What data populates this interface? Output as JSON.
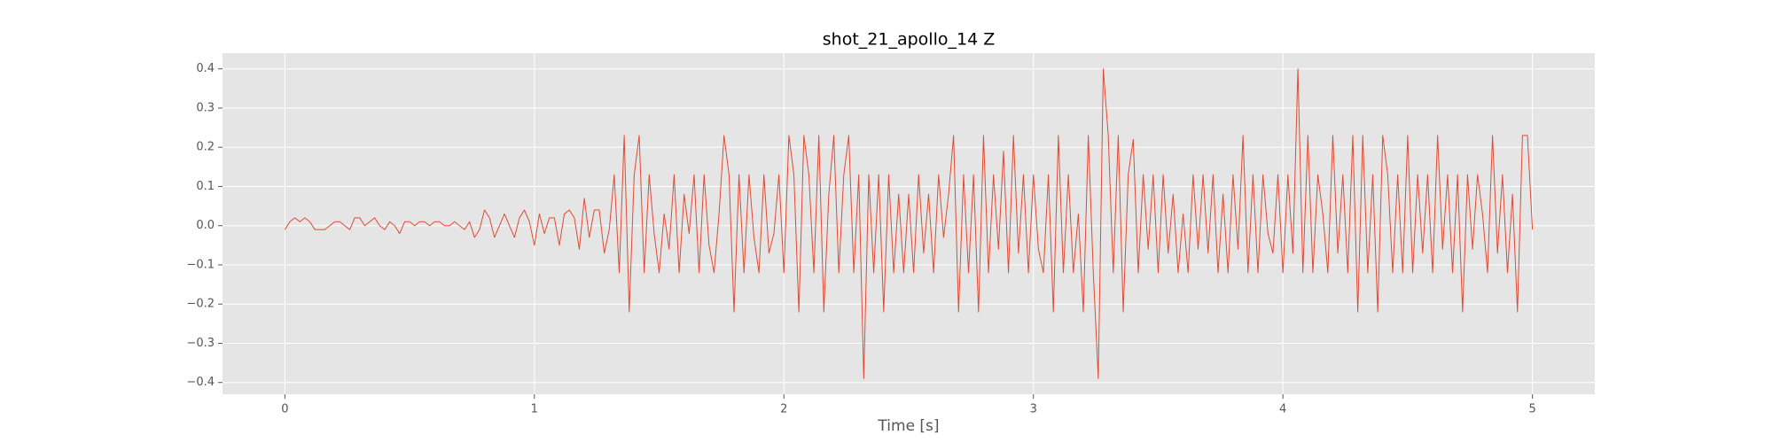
{
  "chart_data": {
    "type": "line",
    "title": "shot_21_apollo_14 Z",
    "x_label": "Time [s]",
    "x": [
      0,
      0.02,
      0.04,
      0.06,
      0.08,
      0.1,
      0.12,
      0.14,
      0.16,
      0.18,
      0.2,
      0.22,
      0.24,
      0.26,
      0.28,
      0.3,
      0.32,
      0.34,
      0.36,
      0.38,
      0.4,
      0.42,
      0.44,
      0.46,
      0.48,
      0.5,
      0.52,
      0.54,
      0.56,
      0.58,
      0.6,
      0.62,
      0.64,
      0.66,
      0.68,
      0.7,
      0.72,
      0.74,
      0.76,
      0.78,
      0.8,
      0.82,
      0.84,
      0.86,
      0.88,
      0.9,
      0.92,
      0.94,
      0.96,
      0.98,
      1,
      1.02,
      1.04,
      1.06,
      1.08,
      1.1,
      1.12,
      1.14,
      1.16,
      1.18,
      1.2,
      1.22,
      1.24,
      1.26,
      1.28,
      1.3,
      1.32,
      1.34,
      1.36,
      1.38,
      1.4,
      1.42,
      1.44,
      1.46,
      1.48,
      1.5,
      1.52,
      1.54,
      1.56,
      1.58,
      1.6,
      1.62,
      1.64,
      1.66,
      1.68,
      1.7,
      1.72,
      1.74,
      1.76,
      1.78,
      1.8,
      1.82,
      1.84,
      1.86,
      1.88,
      1.9,
      1.92,
      1.94,
      1.96,
      1.98,
      2,
      2.02,
      2.04,
      2.06,
      2.08,
      2.1,
      2.12,
      2.14,
      2.16,
      2.18,
      2.2,
      2.22,
      2.24,
      2.26,
      2.28,
      2.3,
      2.32,
      2.34,
      2.36,
      2.38,
      2.4,
      2.42,
      2.44,
      2.46,
      2.48,
      2.5,
      2.52,
      2.54,
      2.56,
      2.58,
      2.6,
      2.62,
      2.64,
      2.66,
      2.68,
      2.7,
      2.72,
      2.74,
      2.76,
      2.78,
      2.8,
      2.82,
      2.84,
      2.86,
      2.88,
      2.9,
      2.92,
      2.94,
      2.96,
      2.98,
      3,
      3.02,
      3.04,
      3.06,
      3.08,
      3.1,
      3.12,
      3.14,
      3.16,
      3.18,
      3.2,
      3.22,
      3.24,
      3.26,
      3.28,
      3.3,
      3.32,
      3.34,
      3.36,
      3.38,
      3.4,
      3.42,
      3.44,
      3.46,
      3.48,
      3.5,
      3.52,
      3.54,
      3.56,
      3.58,
      3.6,
      3.62,
      3.64,
      3.66,
      3.68,
      3.7,
      3.72,
      3.74,
      3.76,
      3.78,
      3.8,
      3.82,
      3.84,
      3.86,
      3.88,
      3.9,
      3.92,
      3.94,
      3.96,
      3.98,
      4,
      4.02,
      4.04,
      4.06,
      4.08,
      4.1,
      4.12,
      4.14,
      4.16,
      4.18,
      4.2,
      4.22,
      4.24,
      4.26,
      4.28,
      4.3,
      4.32,
      4.34,
      4.36,
      4.38,
      4.4,
      4.42,
      4.44,
      4.46,
      4.48,
      4.5,
      4.52,
      4.54,
      4.56,
      4.58,
      4.6,
      4.62,
      4.64,
      4.66,
      4.68,
      4.7,
      4.72,
      4.74,
      4.76,
      4.78,
      4.8,
      4.82,
      4.84,
      4.86,
      4.88,
      4.9,
      4.92,
      4.94,
      4.96,
      4.98,
      5
    ],
    "series": [
      {
        "color": "#e24a33",
        "values": [
          -0.01,
          0.01,
          0.02,
          0.01,
          0.02,
          0.01,
          -0.01,
          -0.01,
          -0.01,
          0.0,
          0.01,
          0.01,
          0.0,
          -0.01,
          0.02,
          0.02,
          0.0,
          0.01,
          0.02,
          0.0,
          -0.01,
          0.01,
          0.0,
          -0.02,
          0.01,
          0.01,
          0.0,
          0.01,
          0.01,
          0.0,
          0.01,
          0.01,
          0.0,
          0.0,
          0.01,
          0.0,
          -0.01,
          0.01,
          -0.03,
          -0.01,
          0.04,
          0.02,
          -0.03,
          0.0,
          0.03,
          0.0,
          -0.03,
          0.02,
          0.04,
          0.01,
          -0.05,
          0.03,
          -0.02,
          0.02,
          0.02,
          -0.05,
          0.03,
          0.04,
          0.02,
          -0.06,
          0.07,
          -0.03,
          0.04,
          0.04,
          -0.07,
          -0.01,
          0.13,
          -0.12,
          0.23,
          -0.22,
          0.13,
          0.23,
          -0.12,
          0.13,
          -0.02,
          -0.12,
          0.03,
          -0.06,
          0.13,
          -0.12,
          0.08,
          -0.02,
          0.13,
          -0.12,
          0.13,
          -0.05,
          -0.12,
          0.03,
          0.23,
          0.13,
          -0.22,
          0.13,
          -0.12,
          0.13,
          -0.03,
          -0.12,
          0.13,
          -0.07,
          -0.02,
          0.13,
          -0.12,
          0.23,
          0.13,
          -0.22,
          0.23,
          0.13,
          -0.12,
          0.23,
          -0.22,
          0.08,
          0.23,
          -0.12,
          0.13,
          0.23,
          -0.12,
          0.13,
          -0.39,
          0.13,
          -0.12,
          0.13,
          -0.22,
          0.13,
          -0.12,
          0.08,
          -0.12,
          0.08,
          -0.12,
          0.13,
          -0.07,
          0.08,
          -0.12,
          0.13,
          -0.03,
          0.08,
          0.23,
          -0.22,
          0.13,
          -0.12,
          0.13,
          -0.22,
          0.23,
          -0.12,
          0.13,
          -0.06,
          0.19,
          -0.12,
          0.23,
          -0.07,
          0.13,
          -0.12,
          0.13,
          -0.06,
          -0.12,
          0.13,
          -0.22,
          0.23,
          -0.12,
          0.13,
          -0.12,
          0.03,
          -0.22,
          0.23,
          -0.12,
          -0.39,
          0.4,
          0.23,
          -0.12,
          0.23,
          -0.22,
          0.13,
          0.22,
          -0.12,
          0.13,
          -0.06,
          0.13,
          -0.12,
          0.13,
          -0.07,
          0.08,
          -0.12,
          0.03,
          -0.12,
          0.13,
          -0.06,
          0.13,
          -0.07,
          0.13,
          -0.12,
          0.08,
          -0.12,
          0.13,
          -0.06,
          0.23,
          -0.12,
          0.13,
          -0.12,
          0.13,
          -0.02,
          -0.07,
          0.13,
          -0.12,
          0.13,
          -0.07,
          0.4,
          -0.12,
          0.23,
          -0.12,
          0.13,
          0.03,
          -0.12,
          0.23,
          -0.07,
          0.13,
          -0.12,
          0.23,
          -0.22,
          0.23,
          -0.12,
          0.13,
          -0.22,
          0.23,
          0.13,
          -0.12,
          0.13,
          -0.12,
          0.23,
          -0.12,
          0.13,
          -0.07,
          0.13,
          -0.12,
          0.23,
          -0.06,
          0.13,
          -0.12,
          0.13,
          -0.22,
          0.13,
          -0.06,
          0.13,
          0.03,
          -0.12,
          0.23,
          -0.07,
          0.13,
          -0.12,
          0.08,
          -0.22,
          0.23,
          0.23,
          -0.01
        ]
      }
    ],
    "xlim": [
      -0.25,
      5.25
    ],
    "ylim": [
      -0.43,
      0.44
    ],
    "xticks": [
      0,
      1,
      2,
      3,
      4,
      5
    ],
    "yticks": [
      {
        "value": -0.4,
        "label": "−0.4"
      },
      {
        "value": -0.3,
        "label": "−0.3"
      },
      {
        "value": -0.2,
        "label": "−0.2"
      },
      {
        "value": -0.1,
        "label": "−0.1"
      },
      {
        "value": 0,
        "label": "0.0"
      },
      0.1,
      0.2,
      0.3,
      0.4
    ],
    "grid": true,
    "background": "#e5e5e5"
  }
}
